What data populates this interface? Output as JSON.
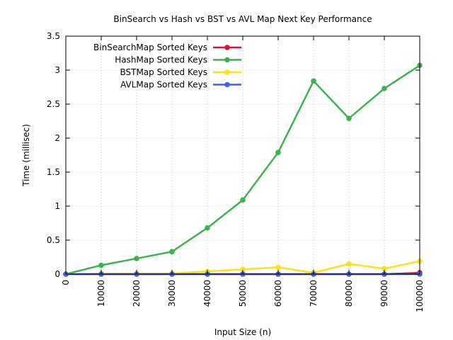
{
  "chart_data": {
    "type": "line",
    "title": "BinSearch vs Hash vs BST vs AVL Map Next Key Performance",
    "xlabel": "Input Size (n)",
    "ylabel": "Time (millisec)",
    "x": [
      0,
      10000,
      20000,
      30000,
      40000,
      50000,
      60000,
      70000,
      80000,
      90000,
      100000
    ],
    "xlim": [
      0,
      100000
    ],
    "ylim": [
      0,
      3.5
    ],
    "x_ticks": [
      "0",
      "10000",
      "20000",
      "30000",
      "40000",
      "50000",
      "60000",
      "70000",
      "80000",
      "90000",
      "100000"
    ],
    "y_ticks": [
      "0",
      "0.5",
      "1",
      "1.5",
      "2",
      "2.5",
      "3",
      "3.5"
    ],
    "grid": true,
    "legend_position": "top-left",
    "series": [
      {
        "name": "BinSearchMap Sorted Keys",
        "color": "#dc143c",
        "values": [
          0,
          0,
          0,
          0,
          0,
          0,
          0,
          0,
          0,
          0,
          0.02
        ]
      },
      {
        "name": "HashMap Sorted Keys",
        "color": "#3cb44b",
        "values": [
          0,
          0.13,
          0.23,
          0.33,
          0.68,
          1.09,
          1.79,
          2.84,
          2.29,
          2.73,
          3.07
        ]
      },
      {
        "name": "BSTMap Sorted Keys",
        "color": "#ffe119",
        "values": [
          0,
          0.01,
          0.01,
          0.01,
          0.04,
          0.07,
          0.1,
          0.02,
          0.15,
          0.08,
          0.19
        ]
      },
      {
        "name": "AVLMap Sorted Keys",
        "color": "#4363d8",
        "values": [
          0,
          0,
          0,
          0,
          0,
          0,
          0,
          0,
          0,
          0,
          0
        ]
      }
    ]
  }
}
